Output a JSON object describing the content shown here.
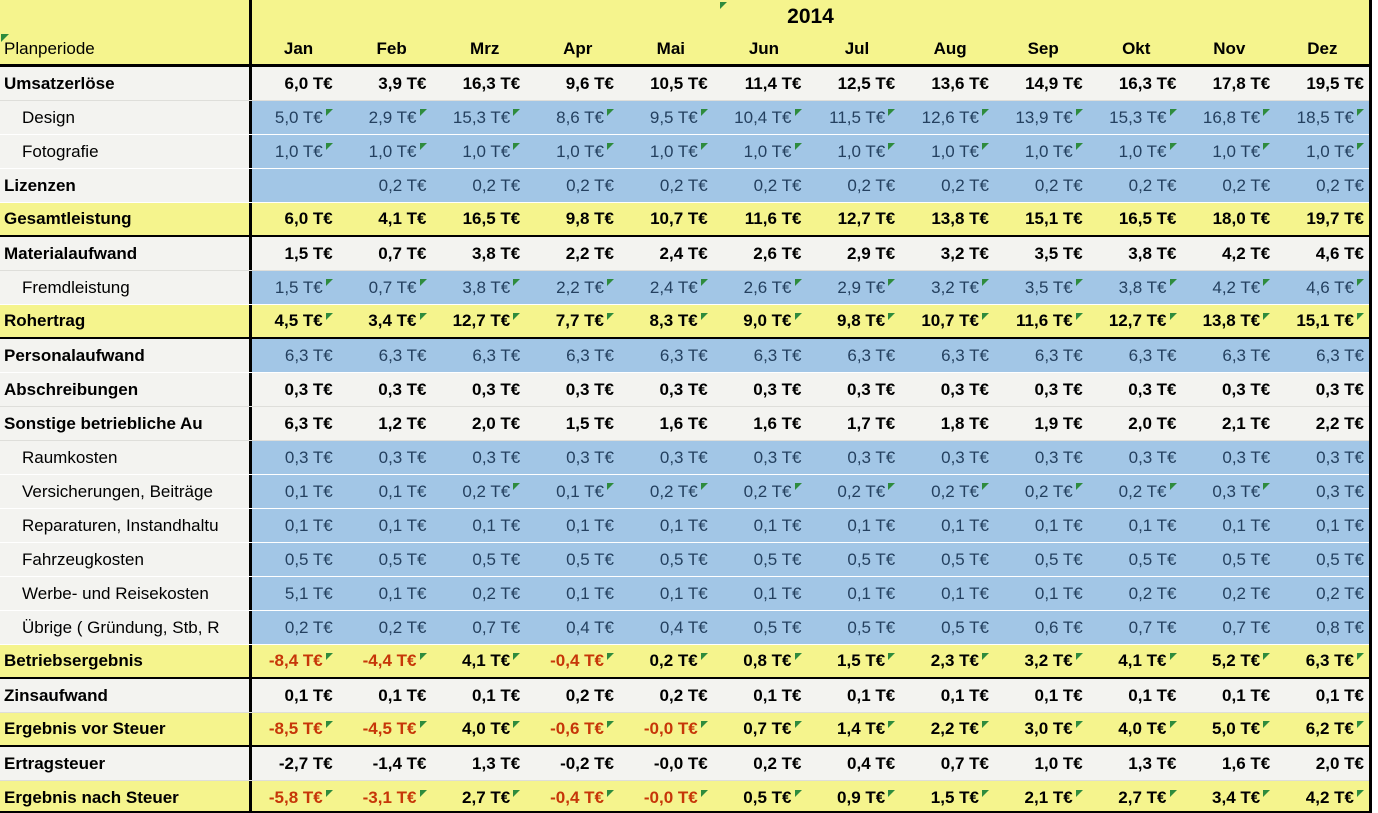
{
  "header": {
    "year": "2014",
    "corner_label": "Planperiode"
  },
  "months": [
    "Jan",
    "Feb",
    "Mrz",
    "Apr",
    "Mai",
    "Jun",
    "Jul",
    "Aug",
    "Sep",
    "Okt",
    "Nov",
    "Dez"
  ],
  "unit": "T€",
  "colors": {
    "header_yellow": "#F5F48D",
    "detail_blue": "#A2C6E6",
    "plain_row": "#F3F3F0",
    "negative_red": "#C63608",
    "marker_green": "#2E8B3D",
    "grid_black": "#000000",
    "blue_text": "#24405F"
  },
  "rows": [
    {
      "label": "Umsatzerlöse",
      "kind": "plain",
      "bold": true,
      "indent": false,
      "cells": [
        "6,0 T€",
        "3,9 T€",
        "16,3 T€",
        "9,6 T€",
        "10,5 T€",
        "11,4 T€",
        "12,5 T€",
        "13,6 T€",
        "14,9 T€",
        "16,3 T€",
        "17,8 T€",
        "19,5 T€"
      ],
      "red": [],
      "markers": []
    },
    {
      "label": "Design",
      "kind": "blue",
      "bold": false,
      "indent": true,
      "cells": [
        "5,0 T€",
        "2,9 T€",
        "15,3 T€",
        "8,6 T€",
        "9,5 T€",
        "10,4 T€",
        "11,5 T€",
        "12,6 T€",
        "13,9 T€",
        "15,3 T€",
        "16,8 T€",
        "18,5 T€"
      ],
      "red": [],
      "markers": [
        0,
        1,
        2,
        3,
        4,
        5,
        6,
        7,
        8,
        9,
        10,
        11
      ]
    },
    {
      "label": "Fotografie",
      "kind": "blue",
      "bold": false,
      "indent": true,
      "cells": [
        "1,0 T€",
        "1,0 T€",
        "1,0 T€",
        "1,0 T€",
        "1,0 T€",
        "1,0 T€",
        "1,0 T€",
        "1,0 T€",
        "1,0 T€",
        "1,0 T€",
        "1,0 T€",
        "1,0 T€"
      ],
      "red": [],
      "markers": [
        0,
        1,
        2,
        3,
        4,
        5,
        6,
        7,
        8,
        9,
        10,
        11
      ]
    },
    {
      "label": "Lizenzen",
      "kind": "blue",
      "bold": true,
      "indent": false,
      "cells": [
        "",
        "0,2 T€",
        "0,2 T€",
        "0,2 T€",
        "0,2 T€",
        "0,2 T€",
        "0,2 T€",
        "0,2 T€",
        "0,2 T€",
        "0,2 T€",
        "0,2 T€",
        "0,2 T€"
      ],
      "red": [],
      "markers": []
    },
    {
      "label": "Gesamtleistung",
      "kind": "total",
      "bold": true,
      "indent": false,
      "divider": true,
      "cells": [
        "6,0 T€",
        "4,1 T€",
        "16,5 T€",
        "9,8 T€",
        "10,7 T€",
        "11,6 T€",
        "12,7 T€",
        "13,8 T€",
        "15,1 T€",
        "16,5 T€",
        "18,0 T€",
        "19,7 T€"
      ],
      "red": [],
      "markers": []
    },
    {
      "label": "Materialaufwand",
      "kind": "plain",
      "bold": true,
      "indent": false,
      "cells": [
        "1,5 T€",
        "0,7 T€",
        "3,8 T€",
        "2,2 T€",
        "2,4 T€",
        "2,6 T€",
        "2,9 T€",
        "3,2 T€",
        "3,5 T€",
        "3,8 T€",
        "4,2 T€",
        "4,6 T€"
      ],
      "red": [],
      "markers": []
    },
    {
      "label": "Fremdleistung",
      "kind": "blue",
      "bold": false,
      "indent": true,
      "cells": [
        "1,5 T€",
        "0,7 T€",
        "3,8 T€",
        "2,2 T€",
        "2,4 T€",
        "2,6 T€",
        "2,9 T€",
        "3,2 T€",
        "3,5 T€",
        "3,8 T€",
        "4,2 T€",
        "4,6 T€"
      ],
      "red": [],
      "markers": [
        0,
        1,
        2,
        3,
        4,
        5,
        6,
        7,
        8,
        9,
        10,
        11
      ]
    },
    {
      "label": "Rohertrag",
      "kind": "total",
      "bold": true,
      "indent": false,
      "divider": true,
      "cells": [
        "4,5 T€",
        "3,4 T€",
        "12,7 T€",
        "7,7 T€",
        "8,3 T€",
        "9,0 T€",
        "9,8 T€",
        "10,7 T€",
        "11,6 T€",
        "12,7 T€",
        "13,8 T€",
        "15,1 T€"
      ],
      "red": [],
      "markers": [
        0,
        1,
        2,
        3,
        4,
        5,
        6,
        7,
        8,
        9,
        10,
        11
      ]
    },
    {
      "label": "Personalaufwand",
      "kind": "blue",
      "bold": true,
      "indent": false,
      "cells": [
        "6,3 T€",
        "6,3 T€",
        "6,3 T€",
        "6,3 T€",
        "6,3 T€",
        "6,3 T€",
        "6,3 T€",
        "6,3 T€",
        "6,3 T€",
        "6,3 T€",
        "6,3 T€",
        "6,3 T€"
      ],
      "red": [],
      "markers": []
    },
    {
      "label": "Abschreibungen",
      "kind": "plain",
      "bold": true,
      "indent": false,
      "cells": [
        "0,3 T€",
        "0,3 T€",
        "0,3 T€",
        "0,3 T€",
        "0,3 T€",
        "0,3 T€",
        "0,3 T€",
        "0,3 T€",
        "0,3 T€",
        "0,3 T€",
        "0,3 T€",
        "0,3 T€"
      ],
      "red": [],
      "markers": []
    },
    {
      "label": "Sonstige betriebliche Au",
      "kind": "plain",
      "bold": true,
      "indent": false,
      "cells": [
        "6,3 T€",
        "1,2 T€",
        "2,0 T€",
        "1,5 T€",
        "1,6 T€",
        "1,6 T€",
        "1,7 T€",
        "1,8 T€",
        "1,9 T€",
        "2,0 T€",
        "2,1 T€",
        "2,2 T€"
      ],
      "red": [],
      "markers": []
    },
    {
      "label": "Raumkosten",
      "kind": "blue",
      "bold": false,
      "indent": true,
      "cells": [
        "0,3 T€",
        "0,3 T€",
        "0,3 T€",
        "0,3 T€",
        "0,3 T€",
        "0,3 T€",
        "0,3 T€",
        "0,3 T€",
        "0,3 T€",
        "0,3 T€",
        "0,3 T€",
        "0,3 T€"
      ],
      "red": [],
      "markers": []
    },
    {
      "label": "Versicherungen, Beiträge",
      "kind": "blue",
      "bold": false,
      "indent": true,
      "cells": [
        "0,1 T€",
        "0,1 T€",
        "0,2 T€",
        "0,1 T€",
        "0,2 T€",
        "0,2 T€",
        "0,2 T€",
        "0,2 T€",
        "0,2 T€",
        "0,2 T€",
        "0,3 T€",
        "0,3 T€"
      ],
      "red": [],
      "markers": [
        2,
        3,
        4,
        5,
        6,
        7,
        8,
        9,
        10
      ]
    },
    {
      "label": "Reparaturen, Instandhaltu",
      "kind": "blue",
      "bold": false,
      "indent": true,
      "cells": [
        "0,1 T€",
        "0,1 T€",
        "0,1 T€",
        "0,1 T€",
        "0,1 T€",
        "0,1 T€",
        "0,1 T€",
        "0,1 T€",
        "0,1 T€",
        "0,1 T€",
        "0,1 T€",
        "0,1 T€"
      ],
      "red": [],
      "markers": []
    },
    {
      "label": "Fahrzeugkosten",
      "kind": "blue",
      "bold": false,
      "indent": true,
      "cells": [
        "0,5 T€",
        "0,5 T€",
        "0,5 T€",
        "0,5 T€",
        "0,5 T€",
        "0,5 T€",
        "0,5 T€",
        "0,5 T€",
        "0,5 T€",
        "0,5 T€",
        "0,5 T€",
        "0,5 T€"
      ],
      "red": [],
      "markers": []
    },
    {
      "label": "Werbe- und Reisekosten",
      "kind": "blue",
      "bold": false,
      "indent": true,
      "cells": [
        "5,1 T€",
        "0,1 T€",
        "0,2 T€",
        "0,1 T€",
        "0,1 T€",
        "0,1 T€",
        "0,1 T€",
        "0,1 T€",
        "0,1 T€",
        "0,2 T€",
        "0,2 T€",
        "0,2 T€"
      ],
      "red": [],
      "markers": []
    },
    {
      "label": "Übrige ( Gründung, Stb, R",
      "kind": "blue",
      "bold": false,
      "indent": true,
      "cells": [
        "0,2 T€",
        "0,2 T€",
        "0,7 T€",
        "0,4 T€",
        "0,4 T€",
        "0,5 T€",
        "0,5 T€",
        "0,5 T€",
        "0,6 T€",
        "0,7 T€",
        "0,7 T€",
        "0,8 T€"
      ],
      "red": [],
      "markers": []
    },
    {
      "label": "Betriebsergebnis",
      "kind": "total",
      "bold": true,
      "indent": false,
      "divider": true,
      "cells": [
        "-8,4 T€",
        "-4,4 T€",
        "4,1 T€",
        "-0,4 T€",
        "0,2 T€",
        "0,8 T€",
        "1,5 T€",
        "2,3 T€",
        "3,2 T€",
        "4,1 T€",
        "5,2 T€",
        "6,3 T€"
      ],
      "red": [
        0,
        1,
        3
      ],
      "markers": [
        0,
        1,
        2,
        3,
        4,
        5,
        6,
        7,
        8,
        9,
        10,
        11
      ]
    },
    {
      "label": "Zinsaufwand",
      "kind": "plain",
      "bold": true,
      "indent": false,
      "cells": [
        "0,1 T€",
        "0,1 T€",
        "0,1 T€",
        "0,2 T€",
        "0,2 T€",
        "0,1 T€",
        "0,1 T€",
        "0,1 T€",
        "0,1 T€",
        "0,1 T€",
        "0,1 T€",
        "0,1 T€"
      ],
      "red": [],
      "markers": []
    },
    {
      "label": "Ergebnis vor Steuer",
      "kind": "total",
      "bold": true,
      "indent": false,
      "divider": true,
      "cells": [
        "-8,5 T€",
        "-4,5 T€",
        "4,0 T€",
        "-0,6 T€",
        "-0,0 T€",
        "0,7 T€",
        "1,4 T€",
        "2,2 T€",
        "3,0 T€",
        "4,0 T€",
        "5,0 T€",
        "6,2 T€"
      ],
      "red": [
        0,
        1,
        3,
        4
      ],
      "markers": [
        0,
        1,
        2,
        3,
        4,
        5,
        6,
        7,
        8,
        9,
        10,
        11
      ]
    },
    {
      "label": "Ertragsteuer",
      "kind": "plain",
      "bold": true,
      "indent": false,
      "cells": [
        "-2,7 T€",
        "-1,4 T€",
        "1,3 T€",
        "-0,2 T€",
        "-0,0 T€",
        "0,2 T€",
        "0,4 T€",
        "0,7 T€",
        "1,0 T€",
        "1,3 T€",
        "1,6 T€",
        "2,0 T€"
      ],
      "red": [],
      "markers": []
    },
    {
      "label": "Ergebnis nach Steuer",
      "kind": "total",
      "bold": true,
      "indent": false,
      "cells": [
        "-5,8 T€",
        "-3,1 T€",
        "2,7 T€",
        "-0,4 T€",
        "-0,0 T€",
        "0,5 T€",
        "0,9 T€",
        "1,5 T€",
        "2,1 T€",
        "2,7 T€",
        "3,4 T€",
        "4,2 T€"
      ],
      "red": [
        0,
        1,
        3,
        4
      ],
      "markers": [
        0,
        1,
        2,
        3,
        4,
        5,
        6,
        7,
        8,
        9,
        10,
        11
      ]
    }
  ],
  "chart_data": {
    "type": "table",
    "title": "Planperiode 2014",
    "unit": "T€",
    "categories": [
      "Jan",
      "Feb",
      "Mrz",
      "Apr",
      "Mai",
      "Jun",
      "Jul",
      "Aug",
      "Sep",
      "Okt",
      "Nov",
      "Dez"
    ],
    "series": [
      {
        "name": "Umsatzerlöse",
        "values": [
          6.0,
          3.9,
          16.3,
          9.6,
          10.5,
          11.4,
          12.5,
          13.6,
          14.9,
          16.3,
          17.8,
          19.5
        ]
      },
      {
        "name": "Design",
        "values": [
          5.0,
          2.9,
          15.3,
          8.6,
          9.5,
          10.4,
          11.5,
          12.6,
          13.9,
          15.3,
          16.8,
          18.5
        ]
      },
      {
        "name": "Fotografie",
        "values": [
          1.0,
          1.0,
          1.0,
          1.0,
          1.0,
          1.0,
          1.0,
          1.0,
          1.0,
          1.0,
          1.0,
          1.0
        ]
      },
      {
        "name": "Lizenzen",
        "values": [
          null,
          0.2,
          0.2,
          0.2,
          0.2,
          0.2,
          0.2,
          0.2,
          0.2,
          0.2,
          0.2,
          0.2
        ]
      },
      {
        "name": "Gesamtleistung",
        "values": [
          6.0,
          4.1,
          16.5,
          9.8,
          10.7,
          11.6,
          12.7,
          13.8,
          15.1,
          16.5,
          18.0,
          19.7
        ]
      },
      {
        "name": "Materialaufwand",
        "values": [
          1.5,
          0.7,
          3.8,
          2.2,
          2.4,
          2.6,
          2.9,
          3.2,
          3.5,
          3.8,
          4.2,
          4.6
        ]
      },
      {
        "name": "Fremdleistung",
        "values": [
          1.5,
          0.7,
          3.8,
          2.2,
          2.4,
          2.6,
          2.9,
          3.2,
          3.5,
          3.8,
          4.2,
          4.6
        ]
      },
      {
        "name": "Rohertrag",
        "values": [
          4.5,
          3.4,
          12.7,
          7.7,
          8.3,
          9.0,
          9.8,
          10.7,
          11.6,
          12.7,
          13.8,
          15.1
        ]
      },
      {
        "name": "Personalaufwand",
        "values": [
          6.3,
          6.3,
          6.3,
          6.3,
          6.3,
          6.3,
          6.3,
          6.3,
          6.3,
          6.3,
          6.3,
          6.3
        ]
      },
      {
        "name": "Abschreibungen",
        "values": [
          0.3,
          0.3,
          0.3,
          0.3,
          0.3,
          0.3,
          0.3,
          0.3,
          0.3,
          0.3,
          0.3,
          0.3
        ]
      },
      {
        "name": "Sonstige betriebliche Aufwendungen",
        "values": [
          6.3,
          1.2,
          2.0,
          1.5,
          1.6,
          1.6,
          1.7,
          1.8,
          1.9,
          2.0,
          2.1,
          2.2
        ]
      },
      {
        "name": "Raumkosten",
        "values": [
          0.3,
          0.3,
          0.3,
          0.3,
          0.3,
          0.3,
          0.3,
          0.3,
          0.3,
          0.3,
          0.3,
          0.3
        ]
      },
      {
        "name": "Versicherungen, Beiträge",
        "values": [
          0.1,
          0.1,
          0.2,
          0.1,
          0.2,
          0.2,
          0.2,
          0.2,
          0.2,
          0.2,
          0.3,
          0.3
        ]
      },
      {
        "name": "Reparaturen, Instandhaltung",
        "values": [
          0.1,
          0.1,
          0.1,
          0.1,
          0.1,
          0.1,
          0.1,
          0.1,
          0.1,
          0.1,
          0.1,
          0.1
        ]
      },
      {
        "name": "Fahrzeugkosten",
        "values": [
          0.5,
          0.5,
          0.5,
          0.5,
          0.5,
          0.5,
          0.5,
          0.5,
          0.5,
          0.5,
          0.5,
          0.5
        ]
      },
      {
        "name": "Werbe- und Reisekosten",
        "values": [
          5.1,
          0.1,
          0.2,
          0.1,
          0.1,
          0.1,
          0.1,
          0.1,
          0.1,
          0.2,
          0.2,
          0.2
        ]
      },
      {
        "name": "Übrige ( Gründung, Stb, R",
        "values": [
          0.2,
          0.2,
          0.7,
          0.4,
          0.4,
          0.5,
          0.5,
          0.5,
          0.6,
          0.7,
          0.7,
          0.8
        ]
      },
      {
        "name": "Betriebsergebnis",
        "values": [
          -8.4,
          -4.4,
          4.1,
          -0.4,
          0.2,
          0.8,
          1.5,
          2.3,
          3.2,
          4.1,
          5.2,
          6.3
        ]
      },
      {
        "name": "Zinsaufwand",
        "values": [
          0.1,
          0.1,
          0.1,
          0.2,
          0.2,
          0.1,
          0.1,
          0.1,
          0.1,
          0.1,
          0.1,
          0.1
        ]
      },
      {
        "name": "Ergebnis vor Steuer",
        "values": [
          -8.5,
          -4.5,
          4.0,
          -0.6,
          -0.0,
          0.7,
          1.4,
          2.2,
          3.0,
          4.0,
          5.0,
          6.2
        ]
      },
      {
        "name": "Ertragsteuer",
        "values": [
          -2.7,
          -1.4,
          1.3,
          -0.2,
          -0.0,
          0.2,
          0.4,
          0.7,
          1.0,
          1.3,
          1.6,
          2.0
        ]
      },
      {
        "name": "Ergebnis nach Steuer",
        "values": [
          -5.8,
          -3.1,
          2.7,
          -0.4,
          -0.0,
          0.5,
          0.9,
          1.5,
          2.1,
          2.7,
          3.4,
          4.2
        ]
      }
    ]
  }
}
